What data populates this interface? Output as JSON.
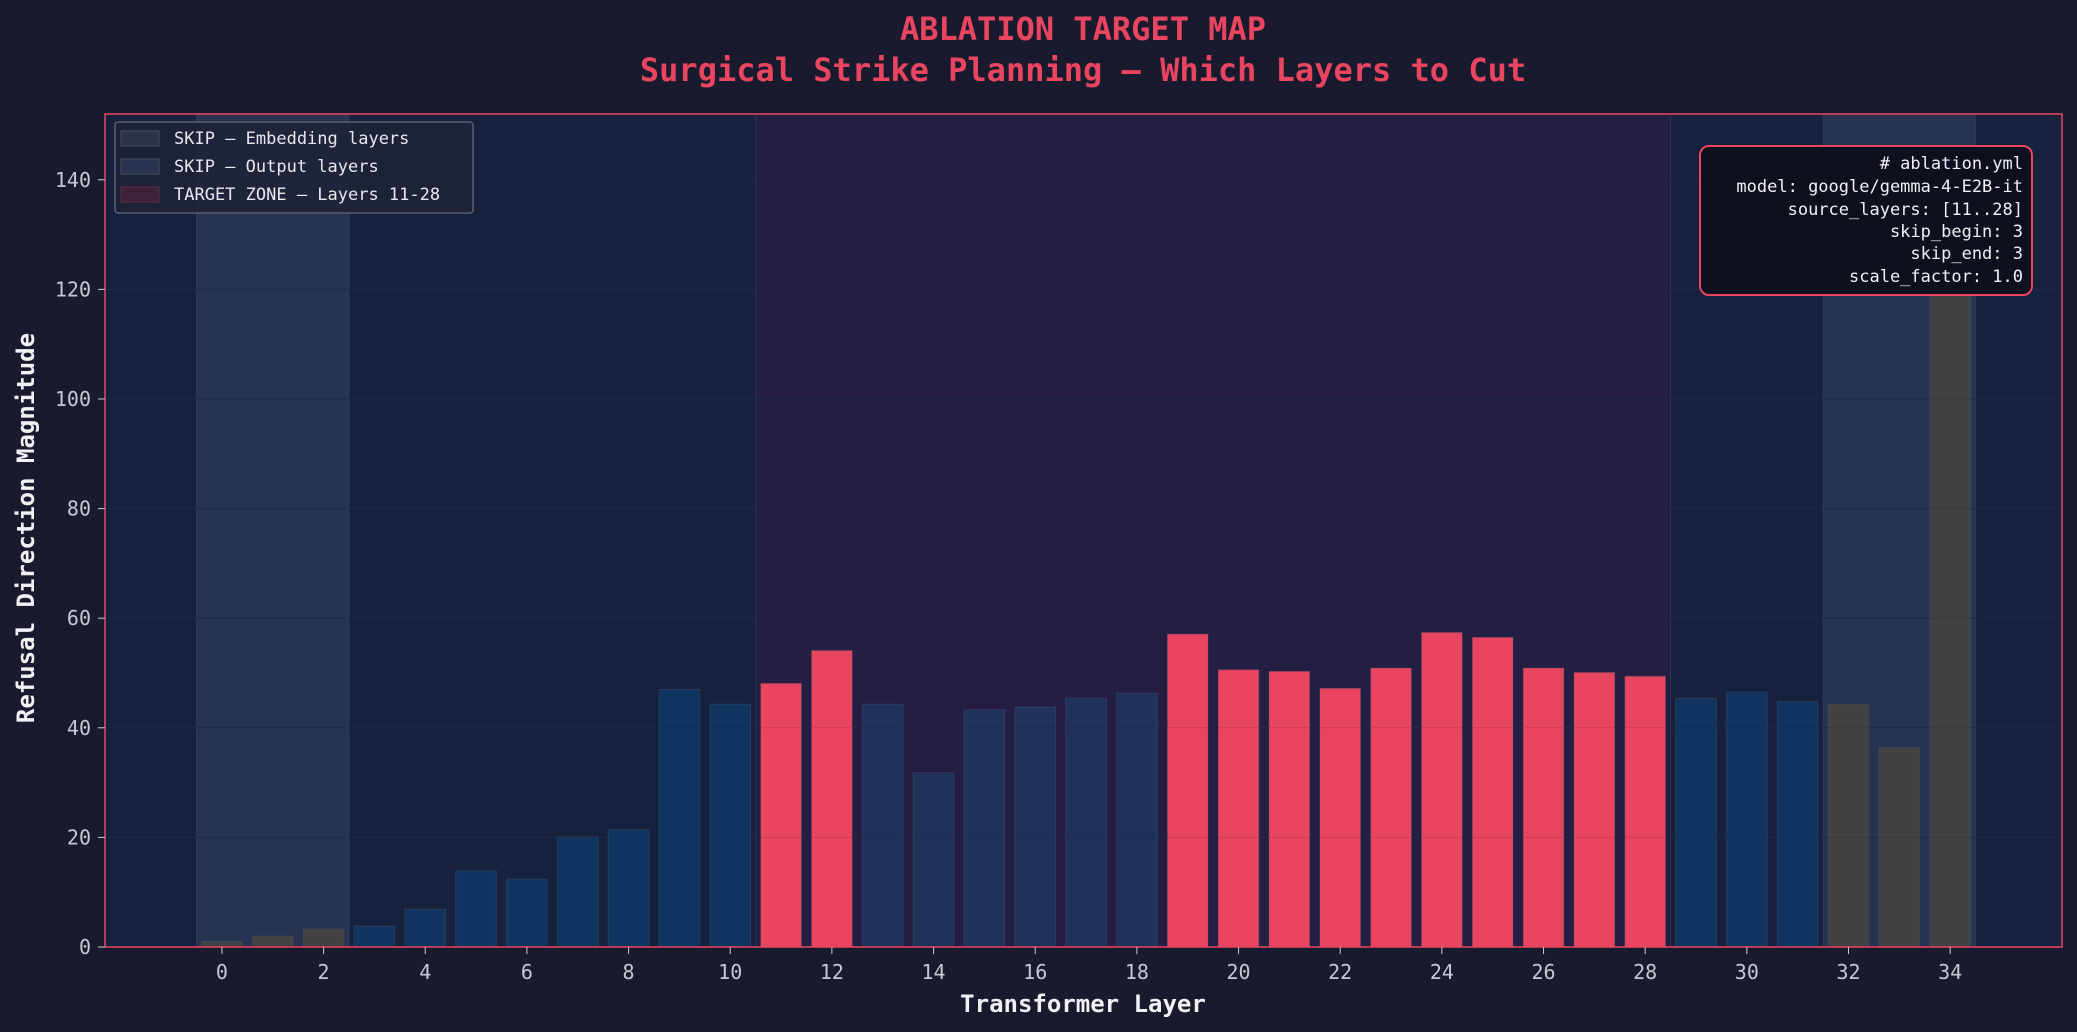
{
  "chart_data": {
    "type": "bar",
    "title": "ABLATION TARGET MAP",
    "subtitle": "Surgical Strike Planning — Which Layers to Cut",
    "xlabel": "Transformer Layer",
    "ylabel": "Refusal Direction Magnitude",
    "x_ticks": [
      0,
      2,
      4,
      6,
      8,
      10,
      12,
      14,
      16,
      18,
      20,
      22,
      24,
      26,
      28,
      30,
      32,
      34
    ],
    "y_ticks": [
      0,
      20,
      40,
      60,
      80,
      100,
      120,
      140
    ],
    "xlim": [
      -2.3,
      36.2
    ],
    "ylim": [
      0,
      152
    ],
    "grid": true,
    "categories": [
      0,
      1,
      2,
      3,
      4,
      5,
      6,
      7,
      8,
      9,
      10,
      11,
      12,
      13,
      14,
      15,
      16,
      17,
      18,
      19,
      20,
      21,
      22,
      23,
      24,
      25,
      26,
      27,
      28,
      29,
      30,
      31,
      32,
      33,
      34
    ],
    "values": [
      1.0,
      2.0,
      3.3,
      3.8,
      6.9,
      13.9,
      12.4,
      20.1,
      21.4,
      47.0,
      44.3,
      48.1,
      54.1,
      44.3,
      31.8,
      43.3,
      43.8,
      45.4,
      46.3,
      57.1,
      50.6,
      50.3,
      47.2,
      50.9,
      57.4,
      56.5,
      50.9,
      50.1,
      49.4,
      45.4,
      46.5,
      44.8,
      44.3,
      36.4,
      122.0
    ],
    "bar_groups": [
      "skip",
      "skip",
      "skip",
      "normal",
      "normal",
      "normal",
      "normal",
      "normal",
      "normal",
      "normal",
      "normal",
      "target",
      "target",
      "mid",
      "mid",
      "mid",
      "mid",
      "mid",
      "mid",
      "target",
      "target",
      "target",
      "target",
      "target",
      "target",
      "target",
      "target",
      "target",
      "target",
      "normal",
      "normal",
      "normal",
      "skip",
      "skip",
      "skip"
    ],
    "regions": [
      {
        "name": "skip-embedding",
        "start": -0.5,
        "end": 2.5
      },
      {
        "name": "target-zone",
        "start": 10.5,
        "end": 28.5
      },
      {
        "name": "skip-output",
        "start": 31.5,
        "end": 34.5
      }
    ],
    "colors": {
      "background": "#1a1a2e",
      "plot_bg": "#16213e",
      "accent": "#e94560",
      "target": "#e94560",
      "normal": "#0f3460",
      "mid": "#1f325c",
      "skip": "#424242",
      "skip_band": "#2a3a56",
      "target_band": "#2a1e44",
      "grid": "#233050"
    },
    "legend": {
      "position": "top-left",
      "entries": [
        {
          "label": "SKIP — Embedding layers",
          "color": "#2e3248"
        },
        {
          "label": "SKIP — Output layers",
          "color": "#2a3350"
        },
        {
          "label": "TARGET ZONE — Layers 11-28",
          "color": "#3e2038"
        }
      ]
    },
    "config_box": {
      "position": "top-right",
      "lines": [
        "# ablation.yml",
        "model: google/gemma-4-E2B-it",
        "source_layers: [11..28]",
        "skip_begin: 3",
        "skip_end: 3",
        "scale_factor: 1.0"
      ]
    }
  }
}
